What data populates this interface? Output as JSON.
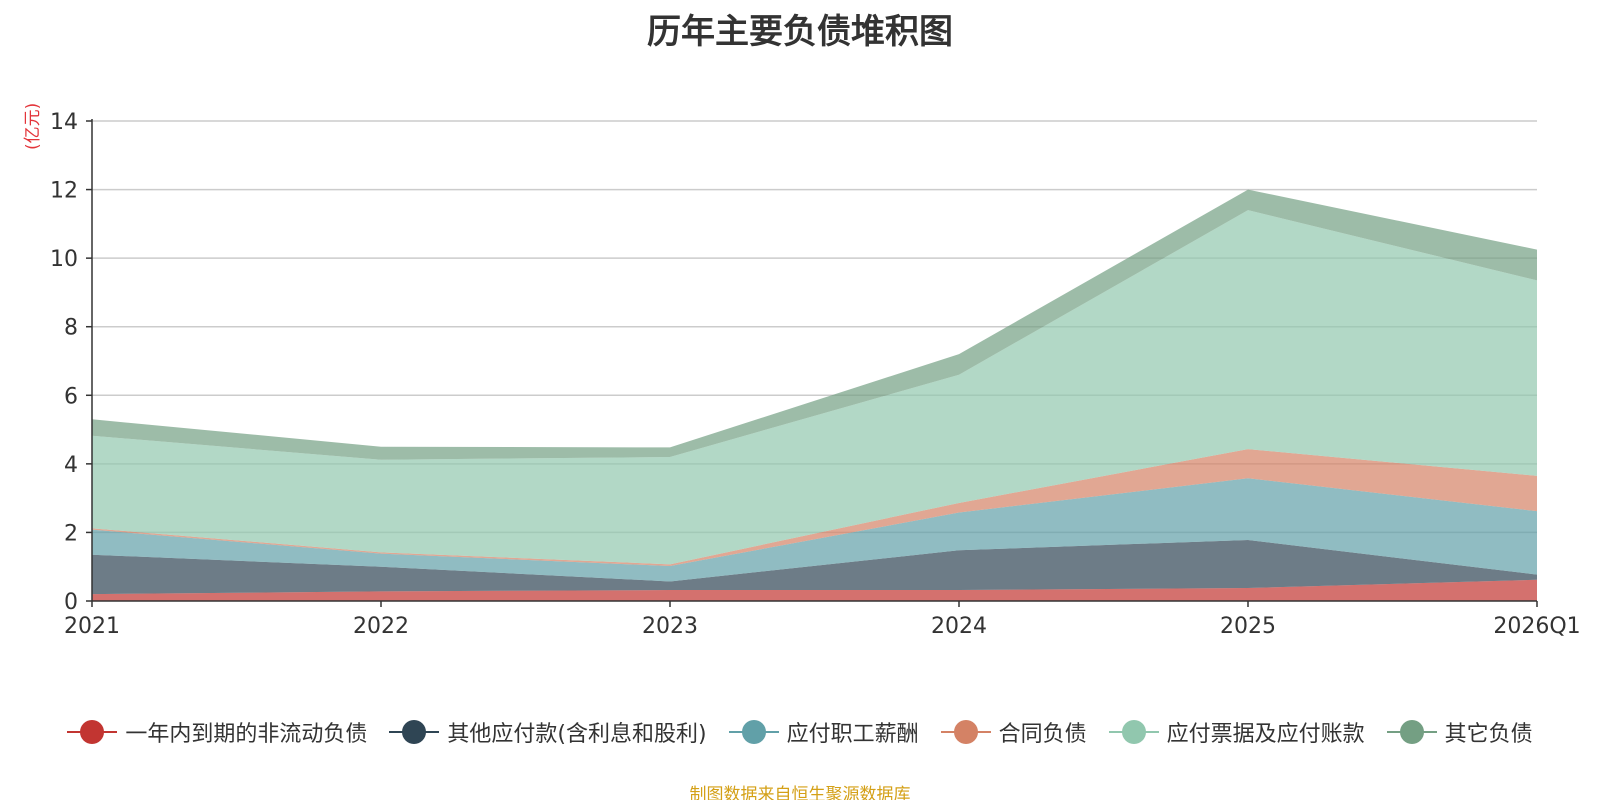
{
  "chart_data": {
    "type": "area",
    "stacked": true,
    "title": "历年主要负债堆积图",
    "ylabel": "(亿元)",
    "xlabel": "",
    "categories": [
      "2021",
      "2022",
      "2023",
      "2024",
      "2025",
      "2026Q1"
    ],
    "ylim": [
      0,
      14
    ],
    "yticks": [
      0,
      2,
      4,
      6,
      8,
      10,
      12,
      14
    ],
    "grid": true,
    "legend_position": "bottom",
    "series": [
      {
        "name": "一年内到期的非流动负债",
        "color": "#c23531",
        "values": [
          0.2,
          0.28,
          0.32,
          0.32,
          0.38,
          0.62
        ]
      },
      {
        "name": "其他应付款(含利息和股利)",
        "color": "#2f4554",
        "values": [
          1.15,
          0.72,
          0.25,
          1.16,
          1.4,
          0.15
        ]
      },
      {
        "name": "应付职工薪酬",
        "color": "#61a0a8",
        "values": [
          0.73,
          0.38,
          0.45,
          1.1,
          1.8,
          1.85
        ]
      },
      {
        "name": "合同负债",
        "color": "#d48265",
        "values": [
          0.04,
          0.04,
          0.05,
          0.28,
          0.85,
          1.03
        ]
      },
      {
        "name": "应付票据及应付账款",
        "color": "#91c7ae",
        "values": [
          2.7,
          2.7,
          3.13,
          3.74,
          6.97,
          5.7
        ]
      },
      {
        "name": "其它负债",
        "color": "#749f83",
        "values": [
          0.48,
          0.38,
          0.28,
          0.6,
          0.6,
          0.9
        ]
      }
    ]
  },
  "source_text": "制图数据来自恒生聚源数据库"
}
